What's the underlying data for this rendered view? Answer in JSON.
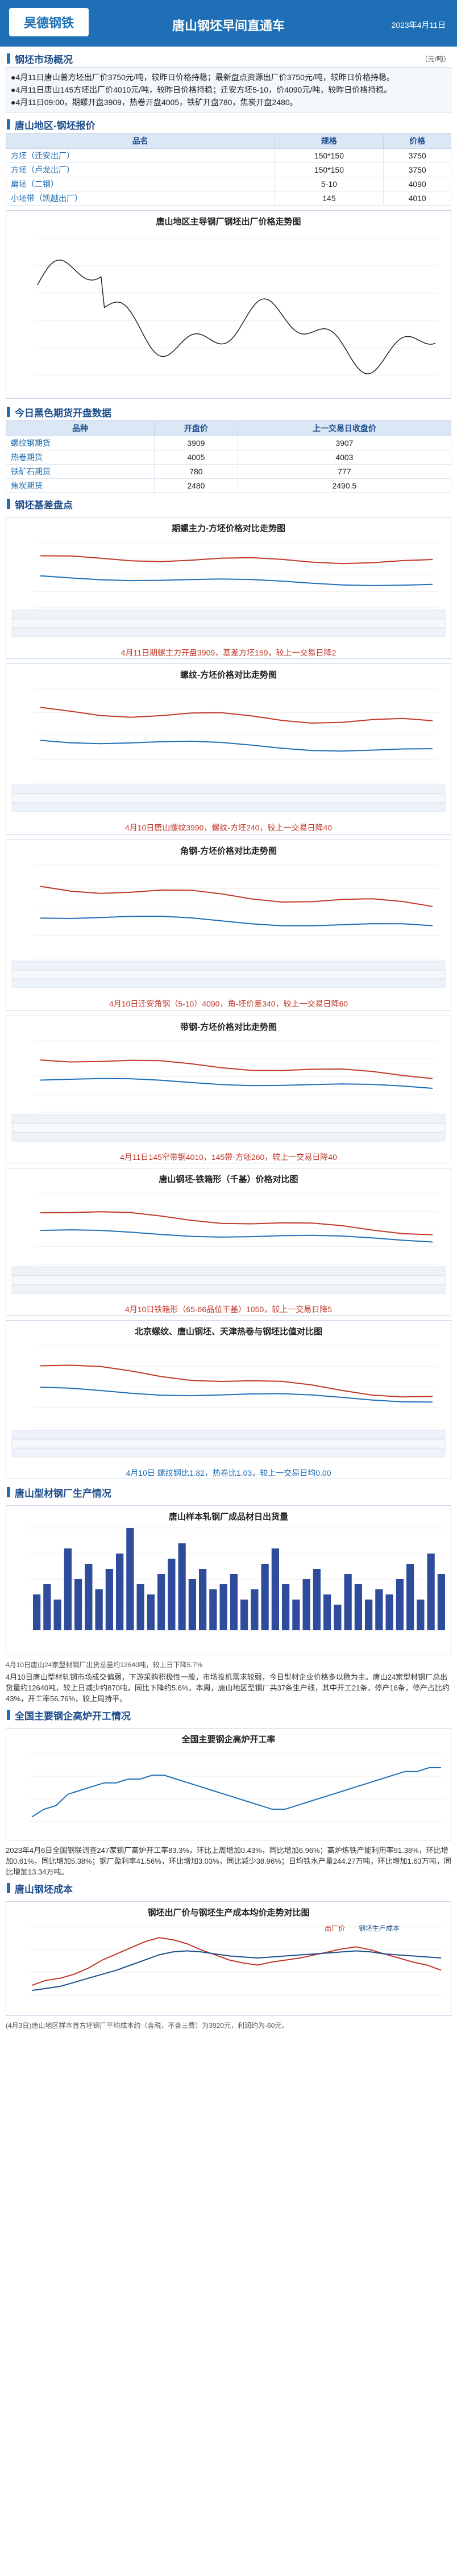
{
  "header": {
    "logo": "昊德钢铁",
    "title": "唐山钢坯早间直通车",
    "date": "2023年4月11日"
  },
  "market": {
    "section_title": "钢坯市场概况",
    "unit": "（元/吨）",
    "lines": [
      "●4月11日唐山普方坯出厂价3750元/吨，较昨日价格持稳；最新盘点资源出厂价3750元/吨，较昨日价格持稳。",
      "●4月11日唐山145方坯出厂价4010元/吨，较昨日价格持稳；迁安方坯5-10，价4090元/吨，较昨日价格持稳。",
      "●4月11日09:00，期螺开盘3909，热卷开盘4005，铁矿开盘780，焦炭开盘2480。"
    ]
  },
  "quote": {
    "section_title": "唐山地区-钢坯报价",
    "headers": [
      "品名",
      "规格",
      "价格"
    ],
    "rows": [
      [
        "方坯（迁安出厂）",
        "150*150",
        "3750"
      ],
      [
        "方坯（卢龙出厂）",
        "150*150",
        "3750"
      ],
      [
        "扁坯（二钢）",
        "5-10",
        "4090"
      ],
      [
        "小坯带（凯越出厂）",
        "145",
        "4010"
      ]
    ],
    "chart_title": "唐山地区主导钢厂钢坯出厂价格走势图"
  },
  "futures": {
    "section_title": "今日黑色期货开盘数据",
    "headers": [
      "品种",
      "开盘价",
      "上一交易日收盘价"
    ],
    "rows": [
      [
        "螺纹钢期货",
        "3909",
        "3907"
      ],
      [
        "热卷期货",
        "4005",
        "4003"
      ],
      [
        "铁矿石期货",
        "780",
        "777"
      ],
      [
        "焦炭期货",
        "2480",
        "2490.5"
      ]
    ]
  },
  "basis": {
    "section_title": "钢坯基差盘点",
    "charts": [
      {
        "title": "期螺主力-方坯价格对比走势图",
        "caption": "4月11日期螺主力开盘3909，基差方坯159，较上一交易日降2"
      },
      {
        "title": "螺纹-方坯价格对比走势图",
        "caption": "4月10日唐山螺纹3990，螺纹-方坯240，较上一交易日降40"
      },
      {
        "title": "角钢-方坯价格对比走势图",
        "caption": "4月10日迁安角钢（5-10）4090，角-坯价差340，较上一交易日降60"
      },
      {
        "title": "带钢-方坯价格对比走势图",
        "caption": "4月11日145窄带钢4010，145带-方坯260，较上一交易日降40"
      },
      {
        "title": "唐山钢坯-铁箱形（千基）价格对比图",
        "caption": "4月10日铁箱形（65-66品位干基）1050，较上一交易日降5"
      },
      {
        "title": "北京螺纹、唐山钢坯、天津热卷与钢坯比值对比图",
        "caption": "4月10日 螺纹钢比1.82，热卷比1.03，较上一交易日均0.00"
      }
    ]
  },
  "production": {
    "section_title": "唐山型材钢厂生产情况",
    "chart_title": "唐山样本轧钢厂成品材日出货量",
    "legend": "吨",
    "note": "4月10日唐山24家型材钢厂出货总量约12640吨，较上日下降5.7%",
    "para": "4月10日唐山型材轧钢市场成交偏弱，下游采购积极性一般，市场投机需求较弱，今日型材企业价格多以稳为主。唐山24家型材钢厂总出货量约12640吨，较上日减少约870吨，同比下降约5.6%。本周，唐山地区型钢厂共37条生产线，其中开工21条，停产16条，停产占比约43%，开工率56.76%，较上周持平。",
    "bars": [
      7,
      9,
      6,
      16,
      10,
      13,
      8,
      12,
      15,
      20,
      9,
      7,
      11,
      14,
      17,
      10,
      12,
      8,
      9,
      11,
      6,
      8,
      13,
      16,
      9,
      6,
      10,
      12,
      7,
      5,
      11,
      9,
      6,
      8,
      7,
      10,
      13,
      6,
      15,
      11
    ]
  },
  "blast": {
    "section_title": "全国主要钢企高炉开工情况",
    "chart_title": "全国主要钢企高炉开工率",
    "para": "2023年4月6日全国钢联调查247家钢厂高炉开工率83.3%，环比上周增加0.43%，同比增加6.96%；高炉炼铁产能利用率91.38%，环比增加0.61%，同比增加5.38%；钢厂盈利率41.56%，环比增加3.03%，同比减少38.96%；日均铁水产量244.27万吨，环比增加1.63万吨，同比增加13.34万吨。",
    "values": [
      70,
      72,
      73,
      76,
      77,
      78,
      79,
      79,
      80,
      80,
      81,
      81,
      80,
      79,
      78,
      77,
      76,
      75,
      74,
      73,
      72,
      72,
      73,
      74,
      75,
      76,
      77,
      78,
      79,
      80,
      81,
      82,
      82,
      83,
      83
    ]
  },
  "cost": {
    "section_title": "唐山钢坯成本",
    "chart_title": "钢坯出厂价与钢坯生产成本均价走势对比图",
    "legend": [
      "出厂价",
      "钢坯生产成本"
    ],
    "note": "(4月3日)唐山地区样本普方坯钢厂平均成本约（含税，不含三费）为3920元，利润约为-60元。",
    "price": [
      3650,
      3700,
      3720,
      3760,
      3820,
      3900,
      3960,
      4020,
      4080,
      4120,
      4100,
      4060,
      4000,
      3950,
      3900,
      3870,
      3850,
      3880,
      3900,
      3920,
      3950,
      3980,
      4010,
      4030,
      4000,
      3960,
      3920,
      3880,
      3850,
      3800
    ],
    "cost_values": [
      3600,
      3620,
      3640,
      3680,
      3720,
      3760,
      3800,
      3850,
      3900,
      3950,
      3980,
      3990,
      3980,
      3960,
      3940,
      3930,
      3920,
      3930,
      3940,
      3950,
      3960,
      3970,
      3980,
      3990,
      3980,
      3960,
      3950,
      3940,
      3930,
      3920
    ]
  },
  "colors": {
    "accent": "#1f6fb6",
    "red": "#c0392b"
  }
}
